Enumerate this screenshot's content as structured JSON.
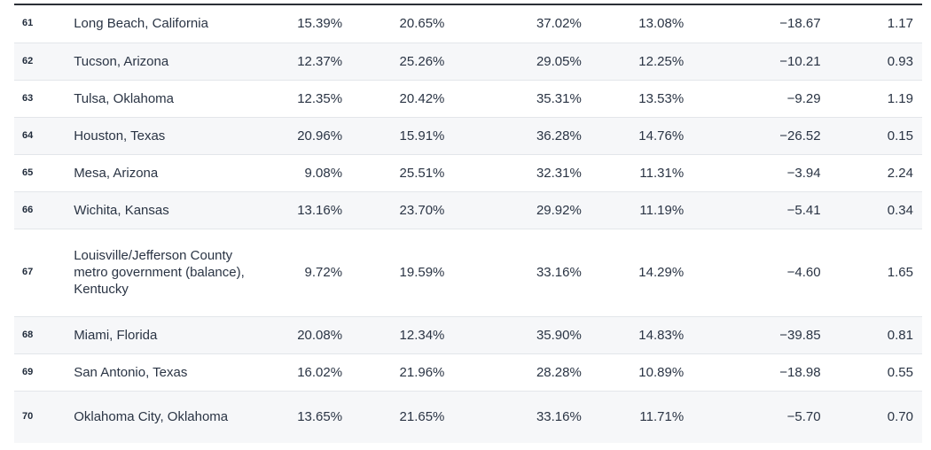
{
  "rows": [
    {
      "rank": "61",
      "city": "Long Beach, California",
      "c1": "15.39%",
      "c2": "20.65%",
      "c3": "37.02%",
      "c4": "13.08%",
      "c5": "−18.67",
      "c6": "1.17"
    },
    {
      "rank": "62",
      "city": "Tucson, Arizona",
      "c1": "12.37%",
      "c2": "25.26%",
      "c3": "29.05%",
      "c4": "12.25%",
      "c5": "−10.21",
      "c6": "0.93"
    },
    {
      "rank": "63",
      "city": "Tulsa, Oklahoma",
      "c1": "12.35%",
      "c2": "20.42%",
      "c3": "35.31%",
      "c4": "13.53%",
      "c5": "−9.29",
      "c6": "1.19"
    },
    {
      "rank": "64",
      "city": "Houston, Texas",
      "c1": "20.96%",
      "c2": "15.91%",
      "c3": "36.28%",
      "c4": "14.76%",
      "c5": "−26.52",
      "c6": "0.15"
    },
    {
      "rank": "65",
      "city": "Mesa, Arizona",
      "c1": "9.08%",
      "c2": "25.51%",
      "c3": "32.31%",
      "c4": "11.31%",
      "c5": "−3.94",
      "c6": "2.24"
    },
    {
      "rank": "66",
      "city": "Wichita, Kansas",
      "c1": "13.16%",
      "c2": "23.70%",
      "c3": "29.92%",
      "c4": "11.19%",
      "c5": "−5.41",
      "c6": "0.34"
    },
    {
      "rank": "67",
      "city": "Louisville/Jefferson County metro government (balance), Kentucky",
      "c1": "9.72%",
      "c2": "19.59%",
      "c3": "33.16%",
      "c4": "14.29%",
      "c5": "−4.60",
      "c6": "1.65"
    },
    {
      "rank": "68",
      "city": "Miami, Florida",
      "c1": "20.08%",
      "c2": "12.34%",
      "c3": "35.90%",
      "c4": "14.83%",
      "c5": "−39.85",
      "c6": "0.81"
    },
    {
      "rank": "69",
      "city": "San Antonio, Texas",
      "c1": "16.02%",
      "c2": "21.96%",
      "c3": "28.28%",
      "c4": "10.89%",
      "c5": "−18.98",
      "c6": "0.55"
    },
    {
      "rank": "70",
      "city": "Oklahoma City, Oklahoma",
      "c1": "13.65%",
      "c2": "21.65%",
      "c3": "33.16%",
      "c4": "11.71%",
      "c5": "−5.70",
      "c6": "0.70"
    }
  ]
}
